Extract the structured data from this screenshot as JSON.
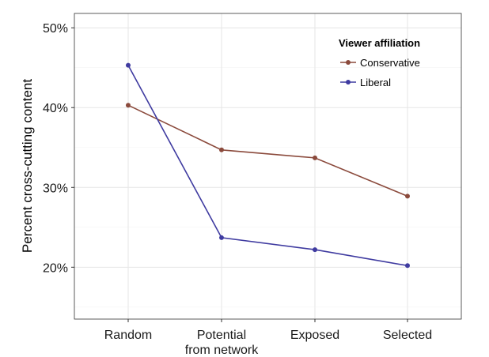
{
  "chart_data": {
    "type": "line",
    "categories": [
      "Random",
      "Potential\nfrom network",
      "Exposed",
      "Selected"
    ],
    "series": [
      {
        "name": "Conservative",
        "color": "#8b4a3c",
        "values": [
          40.3,
          34.7,
          33.7,
          28.9
        ]
      },
      {
        "name": "Liberal",
        "color": "#3f3ba0",
        "values": [
          45.3,
          23.7,
          22.2,
          20.2
        ]
      }
    ],
    "title": "",
    "xlabel": "",
    "ylabel": "Percent cross-cutting content",
    "ylim": [
      13.5,
      51.8
    ],
    "yticks": [
      20,
      30,
      40,
      50
    ],
    "ytick_labels": [
      "20%",
      "30%",
      "40%",
      "50%"
    ],
    "legend_title": "Viewer affiliation",
    "legend_position": "top-right",
    "grid": true
  }
}
